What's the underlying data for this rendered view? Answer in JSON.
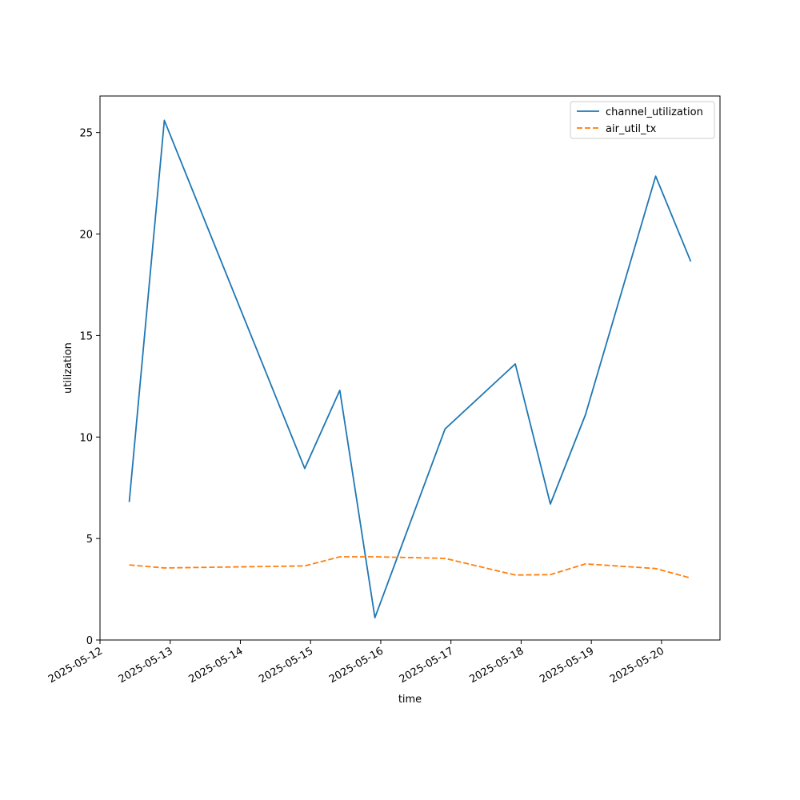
{
  "chart_data": {
    "type": "line",
    "title": "",
    "xlabel": "time",
    "ylabel": "utilization",
    "x_axis_type": "date",
    "xlim": [
      "2025-05-12",
      "2025-05-20T20:00"
    ],
    "ylim": [
      0,
      26.8
    ],
    "x_ticks": [
      "2025-05-12",
      "2025-05-13",
      "2025-05-14",
      "2025-05-15",
      "2025-05-16",
      "2025-05-17",
      "2025-05-18",
      "2025-05-19",
      "2025-05-20"
    ],
    "y_ticks": [
      0,
      5,
      10,
      15,
      20,
      25
    ],
    "grid": false,
    "legend_position": "top-right",
    "x": [
      "2025-05-12T10:00",
      "2025-05-12T22:00",
      "2025-05-14T22:00",
      "2025-05-15T10:00",
      "2025-05-15T22:00",
      "2025-05-16T22:00",
      "2025-05-17T22:00",
      "2025-05-18T10:00",
      "2025-05-18T22:00",
      "2025-05-19T22:00",
      "2025-05-20T10:00"
    ],
    "series": [
      {
        "name": "channel_utilization",
        "color": "#1f77b4",
        "style": "solid",
        "values": [
          6.8,
          25.6,
          8.45,
          12.3,
          1.1,
          10.4,
          13.6,
          6.7,
          11.1,
          22.85,
          18.65
        ]
      },
      {
        "name": "air_util_tx",
        "color": "#ff7f0e",
        "style": "dashed",
        "values": [
          3.7,
          3.55,
          3.65,
          4.1,
          4.1,
          4.02,
          3.2,
          3.22,
          3.75,
          3.52,
          3.05
        ]
      }
    ]
  }
}
